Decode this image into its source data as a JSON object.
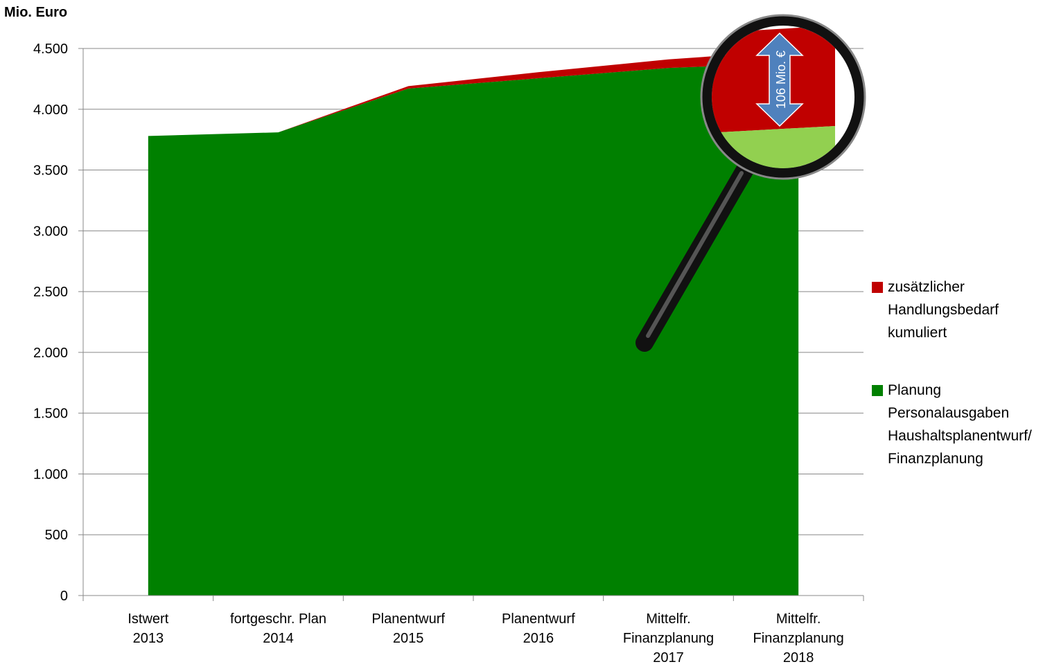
{
  "chart_data": {
    "type": "stacked_area",
    "y_label": "Mio. Euro",
    "annotation": "106 Mio. €",
    "categories": [
      "Istwert\n2013",
      "fortgeschr. Plan\n2014",
      "Planentwurf\n2015",
      "Planentwurf\n2016",
      "Mittelfr.\nFinanzplanung\n2017",
      "Mittelfr.\nFinanzplanung\n2018"
    ],
    "series": [
      {
        "name": "Planung\nPersonalausgaben\nHaushaltsplanentwurf/\nFinanzplanung",
        "color": "#008000",
        "values": [
          3780,
          3810,
          4170,
          4255,
          4340,
          4380
        ]
      },
      {
        "name": "zusätzlicher\nHandlungsbedarf\nkumuliert",
        "color": "#c00000",
        "values": [
          0,
          0,
          20,
          50,
          70,
          106
        ]
      }
    ],
    "ylim": [
      0,
      4500
    ],
    "yticks": [
      0,
      {
        "value": 500,
        "label": "500"
      },
      {
        "value": 1000,
        "label": "1.000"
      },
      {
        "value": 1500,
        "label": "1.500"
      },
      {
        "value": 2000,
        "label": "2.000"
      },
      {
        "value": 2500,
        "label": "2.500"
      },
      {
        "value": 3000,
        "label": "3.000"
      },
      {
        "value": 3500,
        "label": "3.500"
      },
      {
        "value": 4000,
        "label": "4.000"
      },
      {
        "value": 4500,
        "label": "4.500"
      }
    ],
    "grid": true,
    "legend": "right"
  }
}
